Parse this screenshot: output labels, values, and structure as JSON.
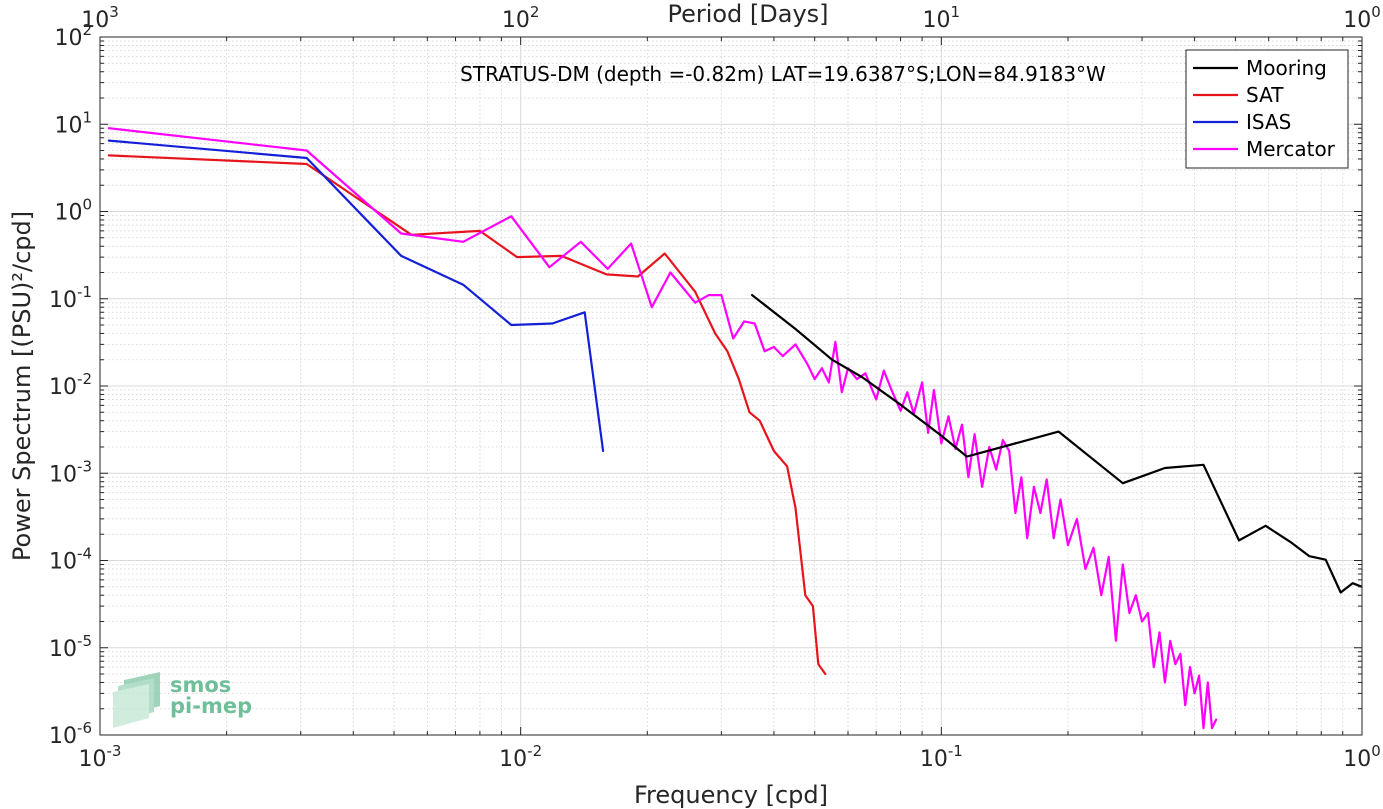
{
  "chart_data": {
    "type": "line",
    "title": "",
    "annotation": "STRATUS-DM (depth =-0.82m) LAT=19.6387°S;LON=84.9183°W",
    "xlabel": "Frequency [cpd]",
    "ylabel": "Power Spectrum [(PSU)²/cpd]",
    "x2label": "Period [Days]",
    "xscale": "log",
    "yscale": "log",
    "xlim": [
      0.001,
      1
    ],
    "ylim": [
      1e-06,
      100
    ],
    "grid": true,
    "legend_position": "top-right",
    "x_ticks": [
      0.001,
      0.01,
      0.1,
      1
    ],
    "x_tick_labels": [
      {
        "base": "10",
        "exp": "-3"
      },
      {
        "base": "10",
        "exp": "-2"
      },
      {
        "base": "10",
        "exp": "-1"
      },
      {
        "base": "10",
        "exp": "0"
      }
    ],
    "y_ticks": [
      1e-06,
      1e-05,
      0.0001,
      0.001,
      0.01,
      0.1,
      1,
      10,
      100
    ],
    "y_tick_labels": [
      {
        "base": "10",
        "exp": "-6"
      },
      {
        "base": "10",
        "exp": "-5"
      },
      {
        "base": "10",
        "exp": "-4"
      },
      {
        "base": "10",
        "exp": "-3"
      },
      {
        "base": "10",
        "exp": "-2"
      },
      {
        "base": "10",
        "exp": "-1"
      },
      {
        "base": "10",
        "exp": "0"
      },
      {
        "base": "10",
        "exp": "1"
      },
      {
        "base": "10",
        "exp": "2"
      }
    ],
    "x2_ticks": [
      1000,
      100,
      10,
      1
    ],
    "x2_tick_labels": [
      {
        "base": "10",
        "exp": "3"
      },
      {
        "base": "10",
        "exp": "2"
      },
      {
        "base": "10",
        "exp": "1"
      },
      {
        "base": "10",
        "exp": "0"
      }
    ],
    "series": [
      {
        "name": "Mooring",
        "color": "#000000",
        "x": [
          0.0355,
          0.045,
          0.055,
          0.065,
          0.08,
          0.1,
          0.115,
          0.19,
          0.27,
          0.34,
          0.42,
          0.51,
          0.59,
          0.68,
          0.75,
          0.82,
          0.89,
          0.95,
          1.0
        ],
        "y": [
          0.11,
          0.045,
          0.02,
          0.0125,
          0.0061,
          0.0027,
          0.00155,
          0.003,
          0.00077,
          0.00115,
          0.00125,
          0.00017,
          0.00025,
          0.00016,
          0.000112,
          0.000102,
          4.3e-05,
          5.5e-05,
          5e-05
        ]
      },
      {
        "name": "SAT",
        "color": "#e8141c",
        "x": [
          0.00105,
          0.0031,
          0.0055,
          0.008,
          0.0098,
          0.0125,
          0.016,
          0.019,
          0.022,
          0.026,
          0.029,
          0.031,
          0.033,
          0.035,
          0.037,
          0.04,
          0.043,
          0.045,
          0.0475,
          0.0495,
          0.051,
          0.053
        ],
        "y": [
          4.4,
          3.5,
          0.54,
          0.6,
          0.3,
          0.31,
          0.19,
          0.18,
          0.33,
          0.12,
          0.04,
          0.025,
          0.012,
          0.005,
          0.004,
          0.0018,
          0.0012,
          0.0004,
          4e-05,
          3e-05,
          6.5e-06,
          5e-06
        ]
      },
      {
        "name": "ISAS",
        "color": "#1420d8",
        "x": [
          0.00105,
          0.0031,
          0.0052,
          0.0073,
          0.0095,
          0.0119,
          0.0142,
          0.0157
        ],
        "y": [
          6.5,
          4.1,
          0.31,
          0.145,
          0.05,
          0.052,
          0.07,
          0.0018
        ]
      },
      {
        "name": "Mercator",
        "color": "#ff00ff",
        "x": [
          0.00105,
          0.0031,
          0.0052,
          0.0073,
          0.0095,
          0.0117,
          0.0139,
          0.0161,
          0.0183,
          0.0205,
          0.0227,
          0.026,
          0.028,
          0.03,
          0.032,
          0.034,
          0.036,
          0.038,
          0.04,
          0.042,
          0.045,
          0.048,
          0.05,
          0.052,
          0.054,
          0.056,
          0.058,
          0.06,
          0.063,
          0.066,
          0.07,
          0.073,
          0.076,
          0.08,
          0.083,
          0.086,
          0.09,
          0.093,
          0.096,
          0.1,
          0.104,
          0.108,
          0.112,
          0.116,
          0.12,
          0.125,
          0.13,
          0.135,
          0.14,
          0.145,
          0.15,
          0.155,
          0.16,
          0.166,
          0.172,
          0.178,
          0.185,
          0.192,
          0.2,
          0.21,
          0.22,
          0.23,
          0.24,
          0.25,
          0.26,
          0.27,
          0.28,
          0.29,
          0.3,
          0.31,
          0.32,
          0.33,
          0.34,
          0.35,
          0.36,
          0.37,
          0.38,
          0.39,
          0.4,
          0.41,
          0.42,
          0.43,
          0.44,
          0.45
        ],
        "y": [
          9.0,
          5.0,
          0.56,
          0.45,
          0.88,
          0.23,
          0.45,
          0.22,
          0.43,
          0.08,
          0.2,
          0.09,
          0.11,
          0.11,
          0.035,
          0.055,
          0.052,
          0.025,
          0.028,
          0.022,
          0.03,
          0.018,
          0.012,
          0.016,
          0.011,
          0.032,
          0.0085,
          0.016,
          0.012,
          0.014,
          0.007,
          0.015,
          0.0092,
          0.0052,
          0.0085,
          0.0048,
          0.011,
          0.0029,
          0.009,
          0.0022,
          0.0045,
          0.0019,
          0.0036,
          0.0009,
          0.0028,
          0.0007,
          0.002,
          0.0011,
          0.0024,
          0.0018,
          0.00035,
          0.0009,
          0.00018,
          0.0007,
          0.00035,
          0.00085,
          0.00018,
          0.0005,
          0.00015,
          0.0003,
          8e-05,
          0.00014,
          4e-05,
          0.00011,
          1.2e-05,
          9e-05,
          2.5e-05,
          4e-05,
          2e-05,
          2.5e-05,
          6e-06,
          1.5e-05,
          4e-06,
          1.2e-05,
          6.5e-06,
          8.5e-06,
          2.2e-06,
          6e-06,
          3e-06,
          4.8e-06,
          1.2e-06,
          4e-06,
          1.2e-06,
          1.5e-06
        ]
      }
    ]
  },
  "logo": {
    "line1": "smos",
    "line2": "pi-mep"
  }
}
